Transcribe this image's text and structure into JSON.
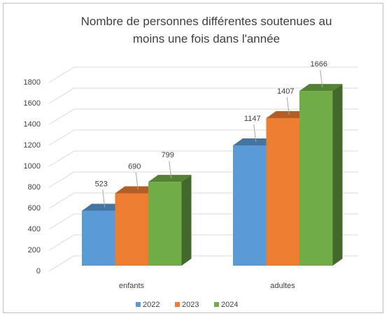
{
  "chart_data": {
    "type": "bar3d",
    "title": "Nombre de personnes différentes soutenues au moins une fois dans l'année",
    "categories": [
      "enfants",
      "adultes"
    ],
    "series": [
      {
        "name": "2022",
        "color": "#5b9bd5",
        "values": [
          523,
          1147
        ]
      },
      {
        "name": "2023",
        "color": "#ed7d31",
        "values": [
          690,
          1407
        ]
      },
      {
        "name": "2024",
        "color": "#70ad47",
        "values": [
          799,
          1666
        ]
      }
    ],
    "ylim": [
      0,
      1800
    ],
    "yticks": [
      0,
      200,
      400,
      600,
      800,
      1000,
      1200,
      1400,
      1600,
      1800
    ],
    "grid": true,
    "legend": "bottom"
  }
}
